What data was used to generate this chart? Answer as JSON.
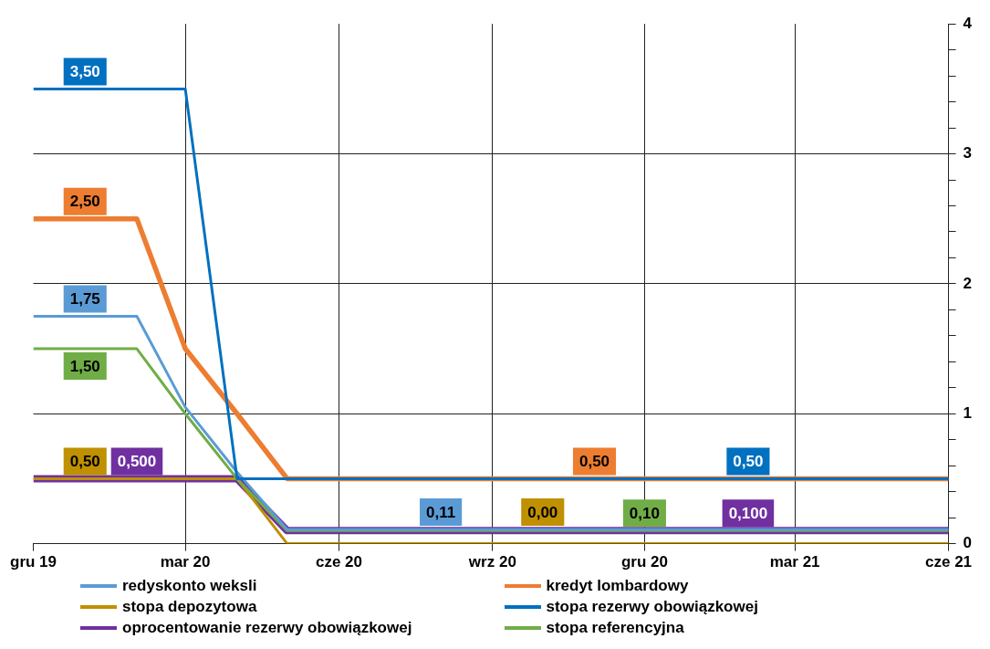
{
  "chart_data": {
    "type": "line",
    "x": [
      "2019-12",
      "2020-01",
      "2020-02",
      "2020-03",
      "2020-04",
      "2020-05",
      "2020-06",
      "2020-07",
      "2020-08",
      "2020-09",
      "2020-10",
      "2020-11",
      "2020-12",
      "2021-01",
      "2021-02",
      "2021-03",
      "2021-04",
      "2021-05",
      "2021-06"
    ],
    "xlim": [
      "2019-12",
      "2021-06"
    ],
    "xticks": [
      {
        "value": "2019-12",
        "label": "gru 19"
      },
      {
        "value": "2020-03",
        "label": "mar 20"
      },
      {
        "value": "2020-06",
        "label": "cze 20"
      },
      {
        "value": "2020-09",
        "label": "wrz 20"
      },
      {
        "value": "2020-12",
        "label": "gru 20"
      },
      {
        "value": "2021-03",
        "label": "mar 21"
      },
      {
        "value": "2021-06",
        "label": "cze 21"
      }
    ],
    "ylim": [
      0,
      4
    ],
    "yticks": [
      0,
      {
        "value": 0.2,
        "label": null
      },
      {
        "value": 0.4,
        "label": null
      },
      {
        "value": 0.6,
        "label": null
      },
      {
        "value": 0.8,
        "label": null
      },
      1,
      {
        "value": 1.2,
        "label": null
      },
      {
        "value": 1.4,
        "label": null
      },
      {
        "value": 1.6,
        "label": null
      },
      {
        "value": 1.8,
        "label": null
      },
      2,
      {
        "value": 2.2,
        "label": null
      },
      {
        "value": 2.4,
        "label": null
      },
      {
        "value": 2.6,
        "label": null
      },
      {
        "value": 2.8,
        "label": null
      },
      3,
      {
        "value": 3.2,
        "label": null
      },
      {
        "value": 3.4,
        "label": null
      },
      {
        "value": 3.6,
        "label": null
      },
      {
        "value": 3.8,
        "label": null
      },
      4
    ],
    "grid": true,
    "legend": "bottom",
    "marker": "none",
    "line_style": "solid",
    "series": [
      {
        "name": "redyskonto weksli",
        "color": "#5b9bd5",
        "values": [
          1.75,
          1.75,
          1.75,
          1.05,
          0.55,
          0.11,
          0.11,
          0.11,
          0.11,
          0.11,
          0.11,
          0.11,
          0.11,
          0.11,
          0.11,
          0.11,
          0.11,
          0.11,
          0.11
        ],
        "value_labels": [
          null,
          "1,75",
          null,
          null,
          null,
          null,
          null,
          null,
          "0,11",
          null,
          null,
          null,
          null,
          null,
          null,
          null,
          null,
          null,
          null
        ]
      },
      {
        "name": "kredyt lombardowy",
        "color": "#ed7d31",
        "values": [
          2.5,
          2.5,
          2.5,
          1.5,
          1.0,
          0.5,
          0.5,
          0.5,
          0.5,
          0.5,
          0.5,
          0.5,
          0.5,
          0.5,
          0.5,
          0.5,
          0.5,
          0.5,
          0.5
        ],
        "value_labels": [
          null,
          "2,50",
          null,
          null,
          null,
          null,
          null,
          null,
          null,
          null,
          null,
          "0,50",
          null,
          null,
          null,
          null,
          null,
          null,
          null
        ]
      },
      {
        "name": "stopa depozytowa",
        "color": "#bf9000",
        "values": [
          0.5,
          0.5,
          0.5,
          0.5,
          0.5,
          0,
          0,
          0,
          0,
          0,
          0,
          0,
          0,
          0,
          0,
          0,
          0,
          0,
          0
        ],
        "value_labels": [
          null,
          "0,50",
          null,
          null,
          null,
          null,
          null,
          null,
          null,
          null,
          "0,00",
          null,
          null,
          null,
          null,
          null,
          null,
          null,
          null
        ]
      },
      {
        "name": "stopa rezerwy obowiązkowej",
        "color": "#0070c0",
        "values": [
          3.5,
          3.5,
          3.5,
          3.5,
          0.5,
          0.5,
          0.5,
          0.5,
          0.5,
          0.5,
          0.5,
          0.5,
          0.5,
          0.5,
          0.5,
          0.5,
          0.5,
          0.5,
          0.5
        ],
        "value_labels": [
          null,
          "3,50",
          null,
          null,
          null,
          null,
          null,
          null,
          null,
          null,
          null,
          null,
          null,
          null,
          "0,50",
          null,
          null,
          null,
          null
        ]
      },
      {
        "name": "oprocentowanie rezerwy obowiązkowej",
        "color": "#7030a0",
        "values": [
          0.5,
          0.5,
          0.5,
          0.5,
          0.5,
          0.1,
          0.1,
          0.1,
          0.1,
          0.1,
          0.1,
          0.1,
          0.1,
          0.1,
          0.1,
          0.1,
          0.1,
          0.1,
          0.1
        ],
        "value_labels": [
          null,
          null,
          "0,500",
          null,
          null,
          null,
          null,
          null,
          null,
          null,
          null,
          null,
          null,
          null,
          "0,100",
          null,
          null,
          null,
          null
        ]
      },
      {
        "name": "stopa referencyjna",
        "color": "#70ad47",
        "values": [
          1.5,
          1.5,
          1.5,
          1.0,
          0.5,
          0.1,
          0.1,
          0.1,
          0.1,
          0.1,
          0.1,
          0.1,
          0.1,
          0.1,
          0.1,
          0.1,
          0.1,
          0.1,
          0.1
        ],
        "value_labels": [
          null,
          "1,50",
          null,
          null,
          null,
          null,
          null,
          null,
          null,
          null,
          null,
          null,
          "0,10",
          null,
          null,
          null,
          null,
          null,
          null
        ]
      }
    ]
  }
}
